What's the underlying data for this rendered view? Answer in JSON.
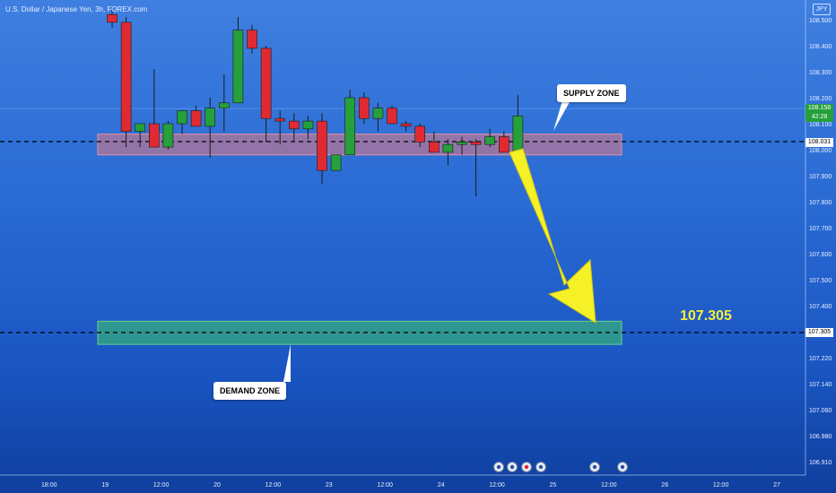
{
  "chart_data": {
    "type": "candlestick",
    "title": "U.S. Dollar / Japanese Yen, 3h, FOREX.com",
    "currency": "JPY",
    "y_ticks": [
      108.5,
      108.4,
      108.3,
      108.2,
      108.1,
      108.0,
      107.9,
      107.8,
      107.7,
      107.6,
      107.5,
      107.4,
      107.305,
      107.22,
      107.14,
      107.06,
      106.98,
      106.91,
      106.84,
      106.76
    ],
    "y_tick_labels": [
      "108.500",
      "108.400",
      "108.300",
      "108.200",
      "108.100",
      "108.000",
      "107.900",
      "107.800",
      "107.700",
      "107.600",
      "107.500",
      "107.400",
      "107.305",
      "107.220",
      "107.140",
      "107.060",
      "106.980",
      "106.910",
      "106.840",
      "106.760"
    ],
    "x_ticks": [
      {
        "label": "18:00",
        "index": -4.5
      },
      {
        "label": "19",
        "index": -0.5
      },
      {
        "label": "12:00",
        "index": 3.5
      },
      {
        "label": "20",
        "index": 7.5
      },
      {
        "label": "12:00",
        "index": 11.5
      },
      {
        "label": "23",
        "index": 15.5
      },
      {
        "label": "12:00",
        "index": 19.5
      },
      {
        "label": "24",
        "index": 23.5
      },
      {
        "label": "12:00",
        "index": 27.5
      },
      {
        "label": "25",
        "index": 31.5
      },
      {
        "label": "12:00",
        "index": 35.5
      },
      {
        "label": "26",
        "index": 39.5
      },
      {
        "label": "12:00",
        "index": 43.5
      },
      {
        "label": "27",
        "index": 47.5
      }
    ],
    "candles": [
      {
        "o": 108.52,
        "h": 108.54,
        "l": 108.47,
        "c": 108.49
      },
      {
        "o": 108.49,
        "h": 108.51,
        "l": 108.01,
        "c": 108.07
      },
      {
        "o": 108.07,
        "h": 108.1,
        "l": 108.01,
        "c": 108.1
      },
      {
        "o": 108.1,
        "h": 108.31,
        "l": 108.01,
        "c": 108.01
      },
      {
        "o": 108.01,
        "h": 108.11,
        "l": 108.0,
        "c": 108.1
      },
      {
        "o": 108.1,
        "h": 108.15,
        "l": 108.06,
        "c": 108.15
      },
      {
        "o": 108.15,
        "h": 108.17,
        "l": 108.09,
        "c": 108.09
      },
      {
        "o": 108.09,
        "h": 108.2,
        "l": 107.97,
        "c": 108.16
      },
      {
        "o": 108.16,
        "h": 108.29,
        "l": 108.07,
        "c": 108.18
      },
      {
        "o": 108.18,
        "h": 108.51,
        "l": 108.18,
        "c": 108.46
      },
      {
        "o": 108.46,
        "h": 108.48,
        "l": 108.37,
        "c": 108.39
      },
      {
        "o": 108.39,
        "h": 108.4,
        "l": 108.03,
        "c": 108.12
      },
      {
        "o": 108.12,
        "h": 108.15,
        "l": 108.02,
        "c": 108.11
      },
      {
        "o": 108.11,
        "h": 108.14,
        "l": 108.03,
        "c": 108.08
      },
      {
        "o": 108.08,
        "h": 108.13,
        "l": 108.04,
        "c": 108.11
      },
      {
        "o": 108.11,
        "h": 108.14,
        "l": 107.87,
        "c": 107.92
      },
      {
        "o": 107.92,
        "h": 107.98,
        "l": 107.92,
        "c": 107.98
      },
      {
        "o": 107.98,
        "h": 108.23,
        "l": 107.98,
        "c": 108.2
      },
      {
        "o": 108.2,
        "h": 108.22,
        "l": 108.1,
        "c": 108.12
      },
      {
        "o": 108.12,
        "h": 108.18,
        "l": 108.07,
        "c": 108.16
      },
      {
        "o": 108.16,
        "h": 108.17,
        "l": 108.1,
        "c": 108.1
      },
      {
        "o": 108.1,
        "h": 108.11,
        "l": 108.07,
        "c": 108.09
      },
      {
        "o": 108.09,
        "h": 108.1,
        "l": 108.01,
        "c": 108.03
      },
      {
        "o": 108.03,
        "h": 108.07,
        "l": 107.99,
        "c": 107.99
      },
      {
        "o": 107.99,
        "h": 108.04,
        "l": 107.94,
        "c": 108.02
      },
      {
        "o": 108.02,
        "h": 108.05,
        "l": 107.98,
        "c": 108.03
      },
      {
        "o": 108.03,
        "h": 108.04,
        "l": 107.82,
        "c": 108.02
      },
      {
        "o": 108.02,
        "h": 108.08,
        "l": 108.01,
        "c": 108.05
      },
      {
        "o": 108.05,
        "h": 108.07,
        "l": 107.99,
        "c": 107.99
      },
      {
        "o": 107.99,
        "h": 108.21,
        "l": 107.99,
        "c": 108.13
      }
    ],
    "supply_zone": {
      "top": 108.06,
      "bottom": 107.98,
      "label": "SUPPLY ZONE"
    },
    "demand_zone": {
      "top": 107.345,
      "bottom": 107.265,
      "label": "DEMAND ZONE"
    },
    "resistance_line": {
      "value": 108.031,
      "label": "108.031"
    },
    "target_line": {
      "value": 107.305,
      "label": "107.305"
    },
    "current_price": {
      "value": 108.158,
      "label": "108.158",
      "countdown": "42:28"
    },
    "target_text": "107.305",
    "colors": {
      "up": "#25a03a",
      "down": "#e02a32",
      "supply": "rgba(230,120,130,0.55)",
      "demand": "rgba(60,190,110,0.6)",
      "arrow": "#f6f027",
      "text_light": "#e8f0ff"
    }
  }
}
